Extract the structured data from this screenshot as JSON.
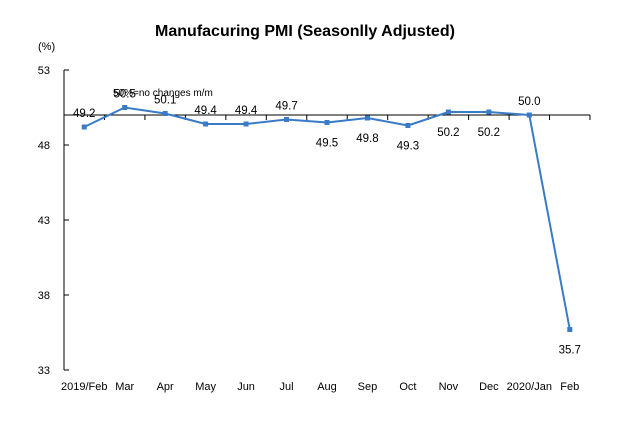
{
  "chart_data": {
    "type": "line",
    "title": "Manufacuring PMI (Seasonlly Adjusted)",
    "unit_label": "(%)",
    "categories": [
      "2019/Feb",
      "Mar",
      "Apr",
      "May",
      "Jun",
      "Jul",
      "Aug",
      "Sep",
      "Oct",
      "Nov",
      "Dec",
      "2020/Jan",
      "Feb"
    ],
    "series": [
      {
        "values": [
          49.2,
          50.5,
          50.1,
          49.4,
          49.4,
          49.7,
          49.5,
          49.8,
          49.3,
          50.2,
          50.2,
          50.0,
          35.7
        ]
      }
    ],
    "data_labels": [
      "49.2",
      "50.5",
      "50.1",
      "49.4",
      "49.4",
      "49.7",
      "49.5",
      "49.8",
      "49.3",
      "50.2",
      "50.2",
      "50.0",
      "35.7"
    ],
    "ylim": [
      33,
      53
    ],
    "yticks": [
      "53",
      "48",
      "43",
      "38",
      "33"
    ],
    "reference_line": {
      "value": 50,
      "label": "50%=no changes  m/m"
    },
    "grid": false,
    "legend": "none",
    "colors": {
      "series": "#3a7bc8",
      "axis": "#000000",
      "reference": "#000000"
    }
  }
}
